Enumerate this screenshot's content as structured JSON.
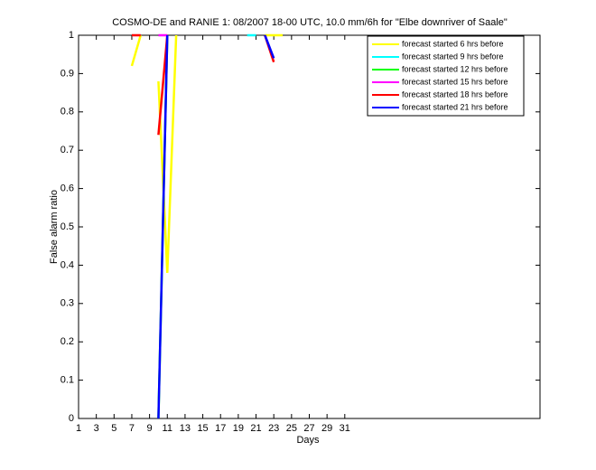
{
  "chart_data": {
    "type": "line",
    "title": "COSMO-DE and RANIE 1: 08/2007 18-00 UTC, 10.0 mm/6h for \"Elbe downriver of Saale\"",
    "x_label": "Days",
    "y_label": "False alarm ratio",
    "x": [
      1,
      2,
      3,
      4,
      5,
      6,
      7,
      8,
      9,
      10,
      11,
      12,
      13,
      14,
      15,
      16,
      17,
      18,
      19,
      20,
      21,
      22,
      23,
      24,
      25,
      26,
      27,
      28,
      29,
      30,
      31
    ],
    "xlim": [
      1,
      53
    ],
    "xticks": [
      1,
      3,
      5,
      7,
      9,
      11,
      13,
      15,
      17,
      19,
      21,
      23,
      25,
      27,
      29,
      31
    ],
    "ylim": [
      0,
      1
    ],
    "yticks": [
      0,
      0.1,
      0.2,
      0.3,
      0.4,
      0.5,
      0.6,
      0.7,
      0.8,
      0.9,
      1
    ],
    "legend": "upper right",
    "series": [
      {
        "name": "forecast started 6 hrs before",
        "color": "#ffff00",
        "values": [
          null,
          null,
          null,
          null,
          null,
          null,
          0.92,
          1,
          null,
          0.88,
          0.38,
          1,
          null,
          null,
          null,
          null,
          null,
          null,
          null,
          null,
          null,
          1,
          1,
          1,
          null,
          null,
          null,
          null,
          null,
          null,
          null
        ]
      },
      {
        "name": "forecast started 9 hrs before",
        "color": "#00ffff",
        "values": [
          null,
          null,
          null,
          null,
          null,
          null,
          null,
          null,
          null,
          0.96,
          null,
          null,
          null,
          null,
          null,
          null,
          null,
          null,
          null,
          1,
          1,
          null,
          null,
          null,
          null,
          null,
          null,
          null,
          null,
          null,
          null
        ]
      },
      {
        "name": "forecast started 12 hrs before",
        "color": "#00ff00",
        "values": [
          null,
          null,
          null,
          null,
          null,
          null,
          null,
          null,
          null,
          0,
          1,
          null,
          null,
          null,
          null,
          null,
          null,
          null,
          null,
          null,
          null,
          null,
          null,
          null,
          null,
          null,
          null,
          null,
          null,
          null,
          null
        ]
      },
      {
        "name": "forecast started 15 hrs before",
        "color": "#ff00ff",
        "values": [
          null,
          null,
          null,
          null,
          null,
          null,
          null,
          null,
          null,
          1,
          1,
          null,
          null,
          null,
          null,
          null,
          null,
          null,
          null,
          null,
          null,
          null,
          null,
          null,
          null,
          null,
          null,
          null,
          null,
          null,
          null
        ]
      },
      {
        "name": "forecast started 18 hrs before",
        "color": "#ff0000",
        "values": [
          null,
          null,
          null,
          null,
          null,
          null,
          1,
          1,
          null,
          0.74,
          1,
          null,
          null,
          null,
          null,
          null,
          null,
          null,
          null,
          null,
          null,
          1,
          0.93,
          null,
          null,
          null,
          null,
          null,
          null,
          null,
          null
        ]
      },
      {
        "name": "forecast started 21 hrs before",
        "color": "#0000ff",
        "values": [
          null,
          null,
          null,
          null,
          null,
          null,
          null,
          null,
          null,
          0,
          1,
          null,
          null,
          null,
          null,
          null,
          null,
          null,
          null,
          null,
          null,
          1,
          0.94,
          null,
          null,
          null,
          null,
          null,
          null,
          null,
          null
        ]
      }
    ]
  }
}
